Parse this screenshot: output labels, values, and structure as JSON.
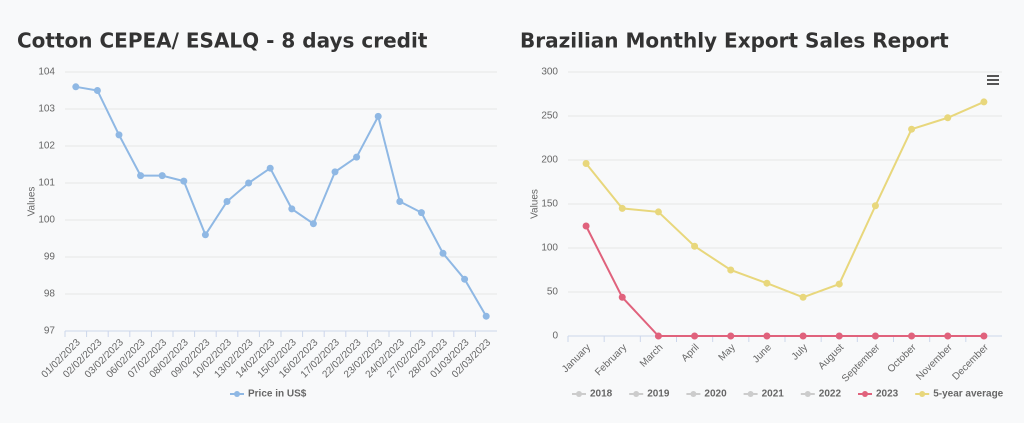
{
  "chart_data": [
    {
      "type": "line",
      "title": "Cotton CEPEA/ ESALQ - 8 days credit",
      "y_label": "Values",
      "categories": [
        "01/02/2023",
        "02/02/2023",
        "03/02/2023",
        "06/02/2023",
        "07/02/2023",
        "08/02/2023",
        "09/02/2023",
        "10/02/2023",
        "13/02/2023",
        "14/02/2023",
        "15/02/2023",
        "16/02/2023",
        "17/02/2023",
        "22/02/2023",
        "23/02/2023",
        "24/02/2023",
        "27/02/2023",
        "28/02/2023",
        "01/03/2023",
        "02/03/2023"
      ],
      "series": [
        {
          "name": "Price in US$",
          "color": "#8fb8e4",
          "values": [
            103.6,
            103.5,
            102.3,
            101.2,
            101.2,
            101.05,
            99.6,
            100.5,
            101.0,
            101.4,
            100.3,
            99.9,
            101.3,
            101.7,
            102.8,
            100.5,
            100.2,
            99.1,
            98.4,
            97.4
          ]
        }
      ],
      "ylim": [
        97,
        104
      ],
      "yticks": [
        97,
        98,
        99,
        100,
        101,
        102,
        103,
        104
      ],
      "grid": true
    },
    {
      "type": "line",
      "title": "Brazilian Monthly Export Sales Report",
      "y_label": "Values",
      "categories": [
        "January",
        "February",
        "March",
        "April",
        "May",
        "June",
        "July",
        "August",
        "September",
        "October",
        "November",
        "December"
      ],
      "series": [
        {
          "name": "2018",
          "color": "#cccccc",
          "visible": false,
          "values": [
            null,
            null,
            null,
            null,
            null,
            null,
            null,
            null,
            null,
            null,
            null,
            null
          ]
        },
        {
          "name": "2019",
          "color": "#cccccc",
          "visible": false,
          "values": [
            null,
            null,
            null,
            null,
            null,
            null,
            null,
            null,
            null,
            null,
            null,
            null
          ]
        },
        {
          "name": "2020",
          "color": "#cccccc",
          "visible": false,
          "values": [
            null,
            null,
            null,
            null,
            null,
            null,
            null,
            null,
            null,
            null,
            null,
            null
          ]
        },
        {
          "name": "2021",
          "color": "#cccccc",
          "visible": false,
          "values": [
            null,
            null,
            null,
            null,
            null,
            null,
            null,
            null,
            null,
            null,
            null,
            null
          ]
        },
        {
          "name": "2022",
          "color": "#cccccc",
          "visible": false,
          "values": [
            null,
            null,
            null,
            null,
            null,
            null,
            null,
            null,
            null,
            null,
            null,
            null
          ]
        },
        {
          "name": "2023",
          "color": "#e0627c",
          "values": [
            125,
            44,
            0,
            0,
            0,
            0,
            0,
            0,
            0,
            0,
            0,
            0
          ]
        },
        {
          "name": "5-year average",
          "color": "#e8d77c",
          "values": [
            196,
            145,
            141,
            102,
            75,
            60,
            44,
            59,
            148,
            235,
            248,
            266
          ]
        }
      ],
      "ylim": [
        0,
        300
      ],
      "yticks": [
        0,
        50,
        100,
        150,
        200,
        250,
        300
      ],
      "grid": true
    }
  ]
}
